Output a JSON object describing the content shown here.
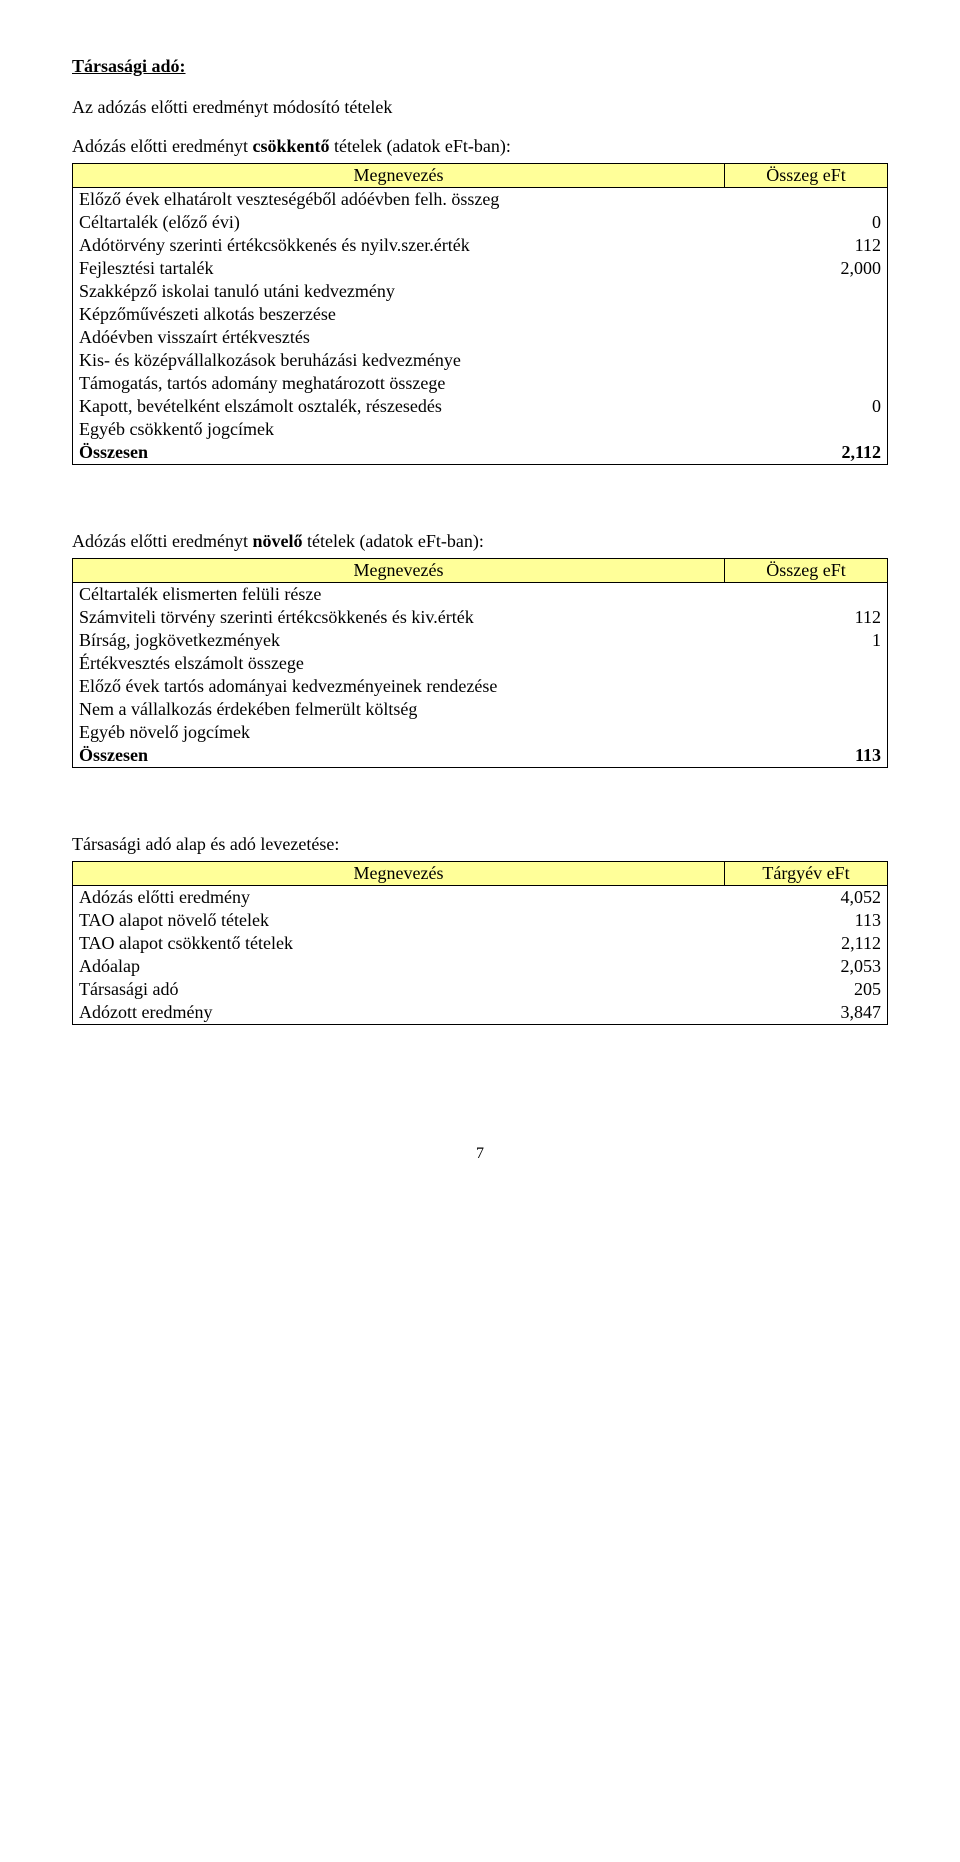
{
  "section_title": "Társasági adó:",
  "intro": "Az adózás előtti eredményt módosító tételek",
  "table1": {
    "caption_prefix": "Adózás előtti eredményt ",
    "caption_bold": "csökkentő",
    "caption_suffix": " tételek (adatok eFt-ban):",
    "col_name": "Megnevezés",
    "col_value": "Összeg eFt",
    "rows": [
      {
        "label": "Előző évek elhatárolt veszteségéből adóévben felh. összeg",
        "value": ""
      },
      {
        "label": "Céltartalék (előző évi)",
        "value": "0"
      },
      {
        "label": "Adótörvény szerinti értékcsökkenés és nyilv.szer.érték",
        "value": "112"
      },
      {
        "label": "Fejlesztési tartalék",
        "value": "2,000"
      },
      {
        "label": "Szakképző iskolai tanuló utáni kedvezmény",
        "value": ""
      },
      {
        "label": "Képzőművészeti alkotás beszerzése",
        "value": ""
      },
      {
        "label": "Adóévben visszaírt értékvesztés",
        "value": ""
      },
      {
        "label": "Kis- és középvállalkozások beruházási kedvezménye",
        "value": ""
      },
      {
        "label": "Támogatás, tartós adomány meghatározott összege",
        "value": ""
      },
      {
        "label": "Kapott, bevételként elszámolt osztalék, részesedés",
        "value": "0"
      },
      {
        "label": "Egyéb csökkentő jogcímek",
        "value": ""
      }
    ],
    "total_label": "Összesen",
    "total_value": "2,112"
  },
  "table2": {
    "caption_prefix": "Adózás előtti eredményt ",
    "caption_bold": "növelő",
    "caption_suffix": " tételek (adatok eFt-ban):",
    "col_name": "Megnevezés",
    "col_value": "Összeg eFt",
    "rows": [
      {
        "label": "Céltartalék elismerten felüli része",
        "value": ""
      },
      {
        "label": "Számviteli törvény szerinti értékcsökkenés és kiv.érték",
        "value": "112"
      },
      {
        "label": "Bírság, jogkövetkezmények",
        "value": "1"
      },
      {
        "label": "Értékvesztés elszámolt összege",
        "value": ""
      },
      {
        "label": "Előző évek tartós adományai kedvezményeinek rendezése",
        "value": ""
      },
      {
        "label": "Nem a vállalkozás érdekében felmerült költség",
        "value": ""
      },
      {
        "label": "Egyéb növelő jogcímek",
        "value": ""
      }
    ],
    "total_label": "Összesen",
    "total_value": "113"
  },
  "table3": {
    "caption": "Társasági adó alap és adó levezetése:",
    "col_name": "Megnevezés",
    "col_value": "Tárgyév eFt",
    "rows": [
      {
        "label": "Adózás előtti eredmény",
        "value": "4,052"
      },
      {
        "label": "TAO alapot növelő tételek",
        "value": "113"
      },
      {
        "label": "TAO alapot csökkentő tételek",
        "value": "2,112"
      },
      {
        "label": "Adóalap",
        "value": "2,053"
      },
      {
        "label": "Társasági adó",
        "value": "205"
      },
      {
        "label": "Adózott eredmény",
        "value": "3,847"
      }
    ]
  },
  "page_number": "7"
}
